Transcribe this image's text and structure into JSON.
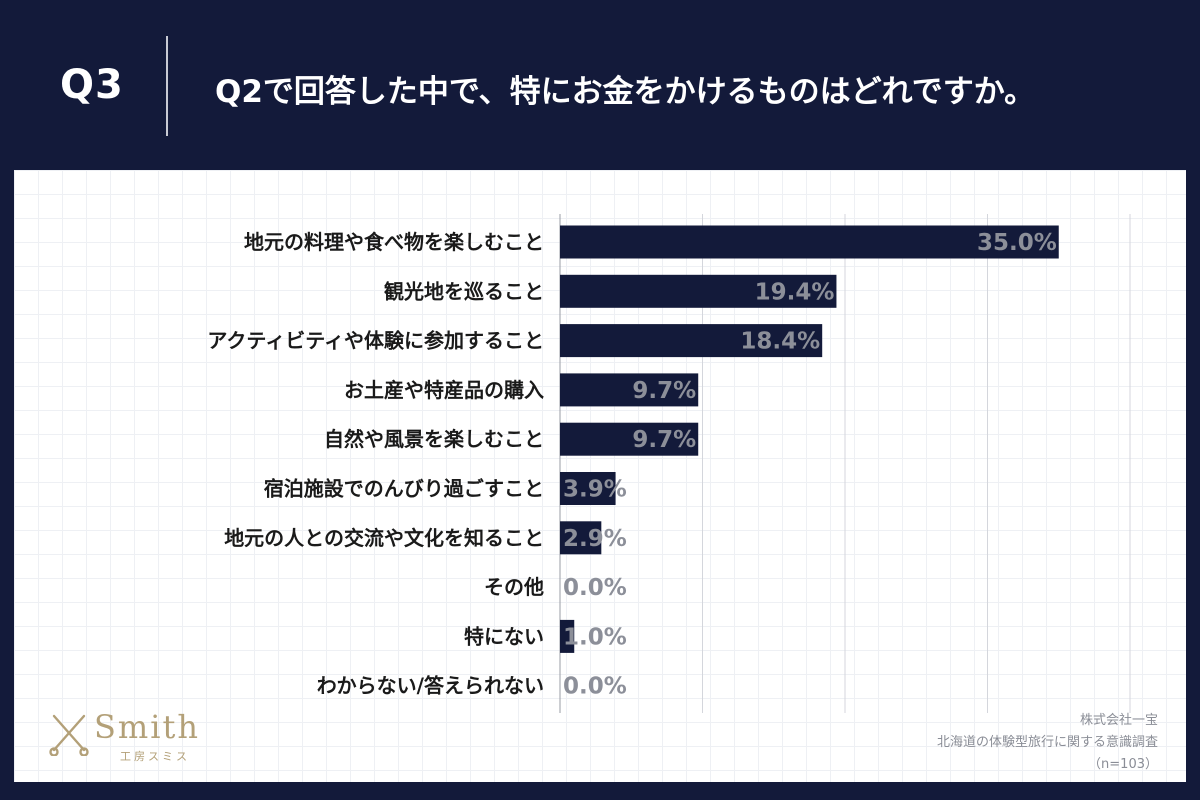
{
  "header": {
    "question_number": "Q3",
    "question_text": "Q2で回答した中で、特にお金をかけるものはどれですか。"
  },
  "chart_data": {
    "type": "bar",
    "orientation": "horizontal",
    "categories": [
      "地元の料理や食べ物を楽しむこと",
      "観光地を巡ること",
      "アクティビティや体験に参加すること",
      "お土産や特産品の購入",
      "自然や風景を楽しむこと",
      "宿泊施設でのんびり過ごすこと",
      "地元の人との交流や文化を知ること",
      "その他",
      "特にない",
      "わからない/答えられない"
    ],
    "values": [
      35.0,
      19.4,
      18.4,
      9.7,
      9.7,
      3.9,
      2.9,
      0.0,
      1.0,
      0.0
    ],
    "data_labels": [
      "35.0%",
      "19.4%",
      "18.4%",
      "9.7%",
      "9.7%",
      "3.9%",
      "2.9%",
      "0.0%",
      "1.0%",
      "0.0%"
    ],
    "xlim": [
      0,
      40
    ],
    "unit": "%",
    "bar_color": "#131a3a",
    "label_color": "#8c8f99",
    "grid": true
  },
  "footer": {
    "company": "株式会社一宝",
    "survey_title": "北海道の体験型旅行に関する意識調査",
    "sample_size": "（n=103）"
  },
  "logo": {
    "wordmark": "Smith",
    "subtitle": "工房スミス",
    "color": "#b3a078"
  }
}
